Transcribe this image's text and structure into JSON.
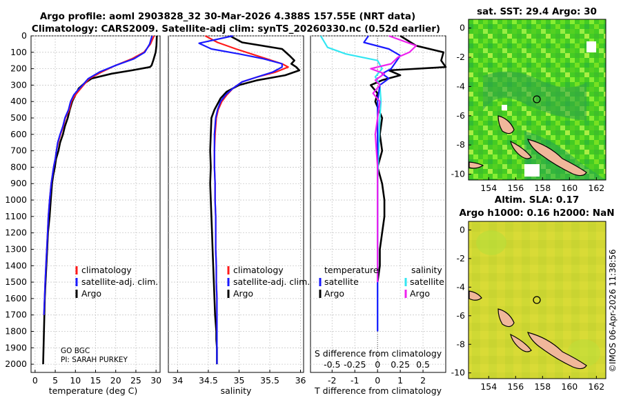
{
  "header": {
    "title_line1": "Argo profile: aoml 2903828_32 30-Mar-2026 4.388S 157.55E (NRT data)",
    "title_line2": "Climatology: CARS2009. Satellite-adj clim: synTS_20260330.nc (0.52d earlier)"
  },
  "annotation": {
    "program": "GO BGC",
    "pi": "PI: SARAH PURKEY"
  },
  "legend_panel1": [
    "climatology",
    "satellite-adj. clim.",
    "Argo"
  ],
  "legend_panel2": [
    "climatology",
    "satellite-adj. clim.",
    "Argo"
  ],
  "legend_panel3": {
    "temperature_header": "temperature",
    "salinity_header": "salinity",
    "items_t": [
      "satellite",
      "Argo"
    ],
    "items_s": [
      "satellite",
      "Argo"
    ]
  },
  "colors": {
    "climatology": "#ff1a1a",
    "satellite": "#1a1aff",
    "argo": "#000000",
    "s_sat": "#33e6f2",
    "s_argo": "#ee22ee"
  },
  "map_sst": {
    "title": "sat. SST: 29.4 Argo: 30",
    "xticks": [
      154,
      156,
      158,
      160,
      162
    ],
    "yticks": [
      0,
      -2,
      -4,
      -6,
      -8,
      -10
    ]
  },
  "map_sla": {
    "title1": "Altim. SLA: 0.17",
    "title2": "Argo h1000: 0.16 h2000: NaN",
    "xticks": [
      154,
      156,
      158,
      160,
      162
    ],
    "yticks": [
      0,
      -2,
      -4,
      -6,
      -8,
      -10
    ]
  },
  "footer": {
    "credit": "©IMOS 06-Apr-2026 11:38:56"
  },
  "chart_data": [
    {
      "type": "line",
      "id": "temperature",
      "xlabel": "temperature (deg C)",
      "ylabel": "",
      "xlim": [
        -1,
        31
      ],
      "ylim": [
        2050,
        0
      ],
      "xticks": [
        0,
        5,
        10,
        15,
        20,
        25,
        30
      ],
      "yticks": [
        0,
        100,
        200,
        300,
        400,
        500,
        600,
        700,
        800,
        900,
        1000,
        1100,
        1200,
        1300,
        1400,
        1500,
        1600,
        1700,
        1800,
        1900,
        2000
      ],
      "series": [
        {
          "name": "climatology",
          "x": [
            29.5,
            28.6,
            27,
            24,
            20,
            16.5,
            13.5,
            12,
            11,
            10,
            9,
            8.5,
            7.5,
            7,
            6.3,
            5.7,
            5.3,
            5.0,
            4.6,
            4.3,
            4.0,
            3.6,
            3.3,
            3.1,
            2.9,
            2.7,
            2.5,
            2.35,
            2.2
          ],
          "y": [
            0,
            50,
            100,
            140,
            180,
            220,
            260,
            300,
            330,
            360,
            400,
            450,
            500,
            550,
            600,
            650,
            700,
            750,
            800,
            850,
            900,
            1000,
            1100,
            1200,
            1300,
            1400,
            1500,
            1600,
            1700
          ]
        },
        {
          "name": "satellite-adj. clim.",
          "x": [
            29.0,
            28.4,
            27.2,
            24.5,
            20,
            16,
            13.2,
            11.8,
            10.6,
            9.6,
            8.8,
            8.3,
            7.4,
            6.9,
            6.2,
            5.6,
            5.3,
            5.0,
            4.6,
            4.3,
            4.0,
            3.6,
            3.3,
            3.1,
            2.9,
            2.7,
            2.5,
            2.35,
            2.2
          ],
          "y": [
            0,
            50,
            100,
            140,
            180,
            220,
            260,
            300,
            330,
            360,
            400,
            450,
            500,
            550,
            600,
            650,
            700,
            750,
            800,
            850,
            900,
            1000,
            1100,
            1200,
            1300,
            1400,
            1500,
            1600,
            1700
          ]
        },
        {
          "name": "Argo",
          "x": [
            30.2,
            30.1,
            29.9,
            29.3,
            28.9,
            28.5,
            24,
            19,
            14,
            12.2,
            10.8,
            10,
            9.2,
            8.6,
            8.1,
            7.4,
            6.9,
            6.2,
            5.8,
            5.2,
            4.9,
            4.5,
            4.2,
            3.9,
            3.6,
            3.2,
            3.0,
            2.8,
            2.6,
            2.4,
            2.3,
            2.2,
            2.1,
            2.0
          ],
          "y": [
            0,
            60,
            100,
            150,
            180,
            190,
            210,
            230,
            260,
            290,
            320,
            360,
            400,
            450,
            500,
            550,
            600,
            650,
            700,
            750,
            800,
            850,
            900,
            1000,
            1100,
            1200,
            1300,
            1400,
            1500,
            1600,
            1700,
            1800,
            1900,
            2000
          ]
        }
      ]
    },
    {
      "type": "line",
      "id": "salinity",
      "xlabel": "salinity",
      "ylabel": "",
      "xlim": [
        33.85,
        36.05
      ],
      "ylim": [
        2050,
        0
      ],
      "xticks": [
        34,
        34.5,
        35,
        35.5,
        36
      ],
      "yticks": [],
      "series": [
        {
          "name": "climatology",
          "x": [
            34.45,
            34.65,
            34.95,
            35.2,
            35.45,
            35.7,
            35.8,
            35.6,
            35.3,
            35.05,
            34.9,
            34.8,
            34.72,
            34.66,
            34.63,
            34.61,
            34.6,
            34.6,
            34.61,
            34.61,
            34.62,
            34.62,
            34.62,
            34.63,
            34.63,
            34.64,
            34.64,
            34.64
          ],
          "y": [
            0,
            40,
            80,
            110,
            140,
            170,
            190,
            220,
            250,
            280,
            320,
            360,
            400,
            450,
            500,
            600,
            700,
            800,
            900,
            1000,
            1100,
            1200,
            1300,
            1400,
            1500,
            1600,
            1700,
            1800
          ]
        },
        {
          "name": "satellite-adj. clim.",
          "x": [
            34.9,
            34.35,
            34.55,
            35.0,
            35.4,
            35.7,
            35.7,
            35.55,
            35.3,
            35.05,
            34.9,
            34.78,
            34.7,
            34.65,
            34.62,
            34.6,
            34.6,
            34.6,
            34.61,
            34.61,
            34.62,
            34.62,
            34.62,
            34.63,
            34.63,
            34.64,
            34.64,
            34.64,
            34.64,
            34.64
          ],
          "y": [
            0,
            45,
            80,
            110,
            140,
            170,
            190,
            220,
            250,
            280,
            320,
            360,
            400,
            450,
            500,
            600,
            700,
            800,
            900,
            1000,
            1100,
            1200,
            1300,
            1400,
            1500,
            1600,
            1700,
            1800,
            1900,
            2000
          ]
        },
        {
          "name": "Argo",
          "x": [
            34.85,
            35.05,
            35.7,
            35.82,
            35.9,
            35.85,
            35.93,
            35.98,
            35.75,
            35.3,
            35.0,
            34.8,
            34.7,
            34.6,
            34.55,
            34.54,
            34.53,
            34.54,
            34.53,
            34.54,
            34.55,
            34.56,
            34.57,
            34.58,
            34.59,
            34.6,
            34.61,
            34.62,
            34.63,
            34.63,
            34.64,
            34.64
          ],
          "y": [
            0,
            40,
            80,
            120,
            150,
            170,
            190,
            210,
            240,
            270,
            300,
            340,
            380,
            450,
            500,
            600,
            700,
            800,
            900,
            1000,
            1100,
            1200,
            1300,
            1400,
            1500,
            1600,
            1700,
            1750,
            1800,
            1850,
            1900,
            2000
          ]
        }
      ]
    },
    {
      "type": "line",
      "id": "difference",
      "xlabel": "T difference from climatology",
      "x2label": "S difference from climatology",
      "xlim": [
        -2.95,
        3.0
      ],
      "ylim": [
        2050,
        0
      ],
      "xticks": [
        -2,
        -1,
        0,
        1,
        2
      ],
      "x2ticks": [
        "-0.5",
        "-0.25",
        "0",
        "0.25",
        "0.5"
      ],
      "x2tick_positions_T": [
        -2,
        -1,
        0,
        1,
        2
      ],
      "yticks": [],
      "series": [
        {
          "name": "T satellite",
          "x": [
            -0.4,
            -0.6,
            0.5,
            1.0,
            0.8,
            0.6,
            0.2,
            0.5,
            0.1,
            0.0,
            0.0,
            0.0,
            0.0,
            0.0,
            0.0,
            0.0,
            0.0,
            0.0,
            0.0,
            0.0,
            0.0
          ],
          "y": [
            0,
            40,
            80,
            120,
            160,
            200,
            230,
            260,
            300,
            400,
            500,
            600,
            700,
            800,
            900,
            1000,
            1200,
            1400,
            1600,
            1700,
            1800
          ]
        },
        {
          "name": "T Argo",
          "x": [
            1.0,
            1.7,
            2.9,
            2.8,
            3.0,
            0.5,
            1.0,
            0.2,
            -0.3,
            0.0,
            -0.1,
            0.2,
            0.1,
            0.2,
            0.0,
            0.2,
            0.3,
            0.3,
            0.2,
            0.1,
            0.1,
            0.0
          ],
          "y": [
            0,
            60,
            100,
            150,
            190,
            210,
            240,
            270,
            300,
            350,
            400,
            500,
            600,
            700,
            800,
            900,
            1000,
            1100,
            1200,
            1300,
            1400,
            1500
          ]
        },
        {
          "name": "S satellite",
          "x": [
            -2.5,
            -2.2,
            -1.4,
            0.0,
            0.2,
            -0.1,
            0.1,
            0.15,
            0.1,
            0.05,
            0.0,
            0.0,
            0.0,
            0.0,
            0.0
          ],
          "y": [
            0,
            70,
            110,
            150,
            200,
            250,
            300,
            400,
            500,
            700,
            900,
            1100,
            1400,
            1700,
            1800
          ]
        },
        {
          "name": "S Argo",
          "x": [
            0.5,
            1.7,
            1.4,
            0.9,
            0.6,
            -0.3,
            0.3,
            -0.1,
            0.1,
            -0.2,
            0.1,
            0.0,
            -0.1,
            0.0,
            0.0,
            0.0,
            0.0
          ],
          "y": [
            0,
            60,
            100,
            130,
            170,
            200,
            230,
            270,
            300,
            350,
            400,
            500,
            600,
            800,
            1000,
            1200,
            1500
          ]
        }
      ]
    }
  ]
}
